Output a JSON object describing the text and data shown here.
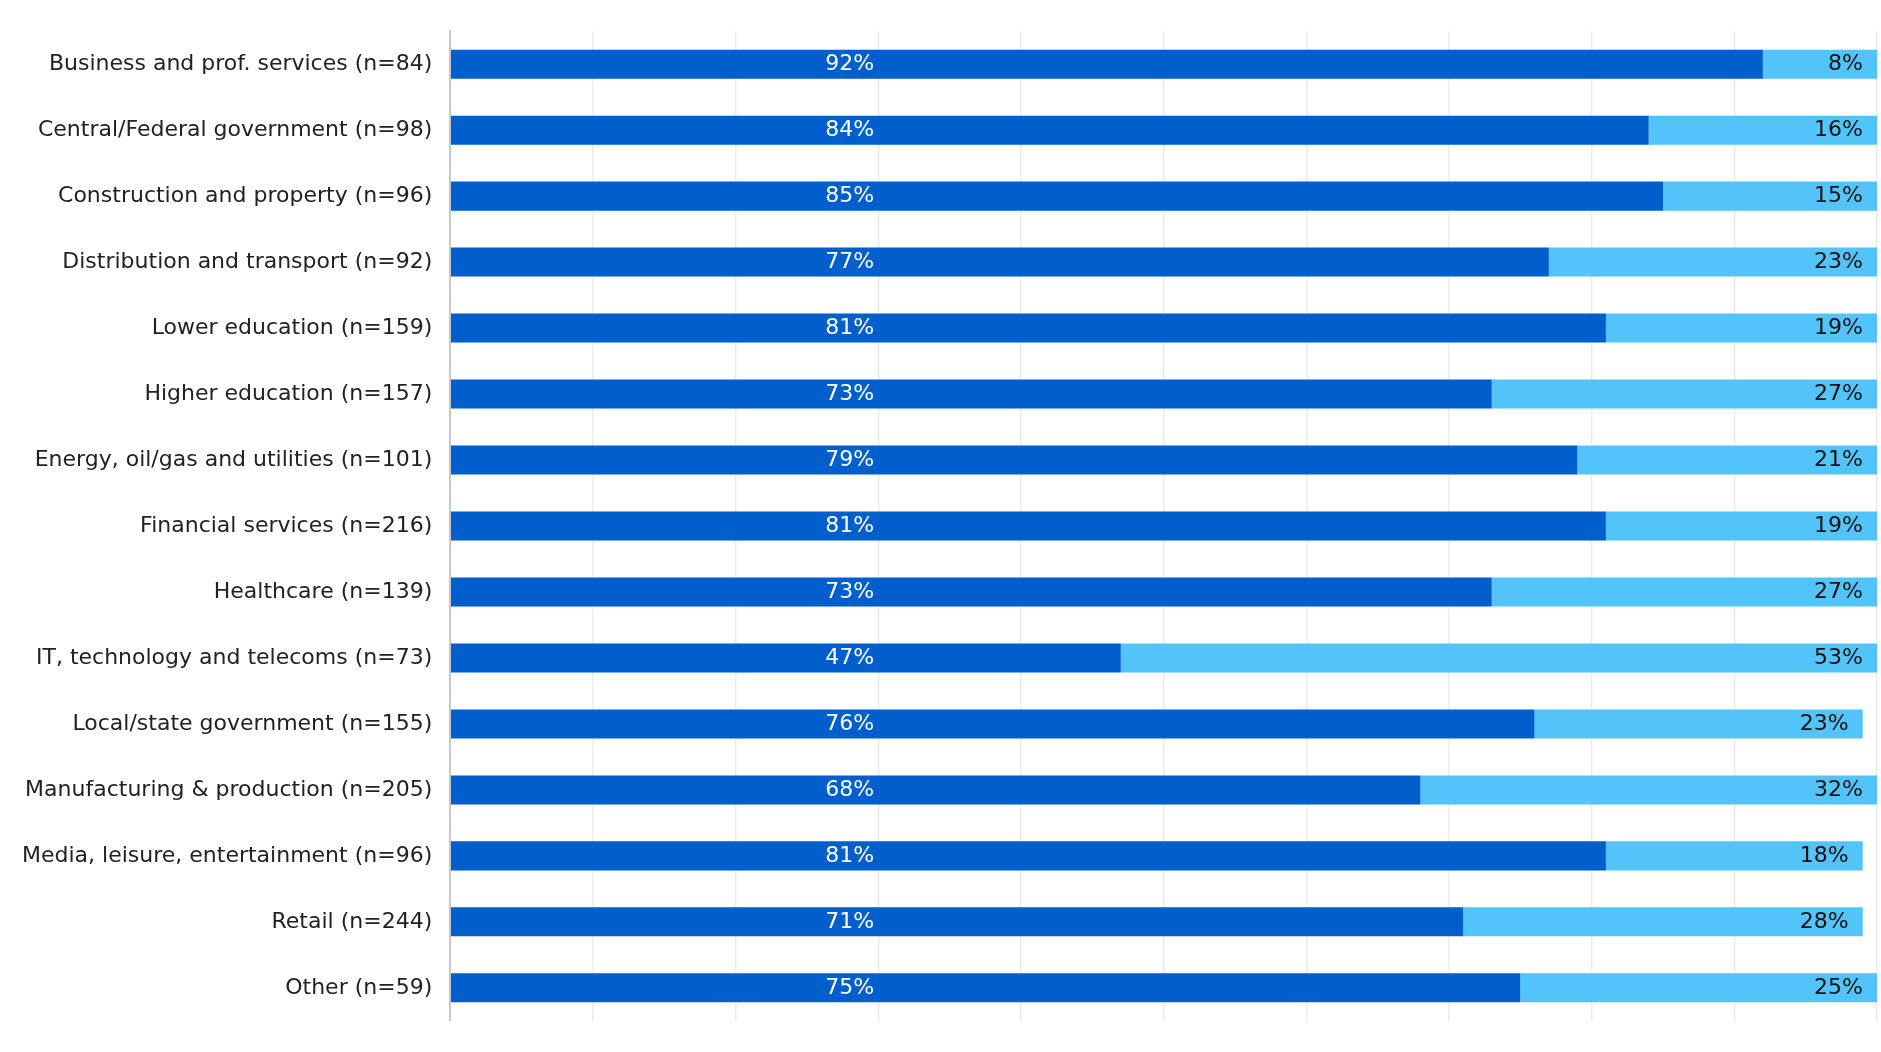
{
  "chart_data": {
    "type": "bar",
    "orientation": "horizontal",
    "stacked": true,
    "grid": "x",
    "legend": false,
    "tick_labels": "y",
    "categories": [
      "Business and prof. services (n=84)",
      "Central/Federal government (n=98)",
      "Construction and property (n=96)",
      "Distribution and transport (n=92)",
      "Lower education (n=159)",
      "Higher education (n=157)",
      "Energy, oil/gas and utilities (n=101)",
      "Financial services (n=216)",
      "Healthcare (n=139)",
      "IT, technology and telecoms (n=73)",
      "Local/state government (n=155)",
      "Manufacturing & production (n=205)",
      "Media, leisure, entertainment (n=96)",
      "Retail (n=244)",
      "Other (n=59)"
    ],
    "series": [
      {
        "color": "#005fcc",
        "values": [
          92,
          84,
          85,
          77,
          81,
          73,
          79,
          81,
          73,
          47,
          76,
          68,
          81,
          71,
          75
        ],
        "value_labels": [
          "92%",
          "84%",
          "85%",
          "77%",
          "81%",
          "73%",
          "79%",
          "81%",
          "73%",
          "47%",
          "76%",
          "68%",
          "81%",
          "71%",
          "75%"
        ]
      },
      {
        "color": "#52c4fa",
        "values": [
          8,
          16,
          15,
          23,
          19,
          27,
          21,
          19,
          27,
          53,
          23,
          32,
          18,
          28,
          25
        ],
        "value_labels": [
          "8%",
          "16%",
          "15%",
          "23%",
          "19%",
          "27%",
          "21%",
          "19%",
          "27%",
          "53%",
          "23%",
          "32%",
          "18%",
          "28%",
          "25%"
        ]
      }
    ]
  }
}
